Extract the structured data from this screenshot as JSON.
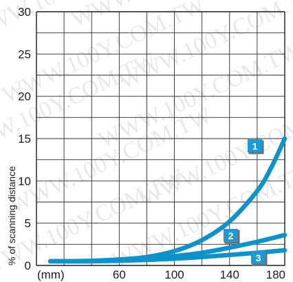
{
  "chart_data": {
    "type": "line",
    "ylabel": "% of scanning distance",
    "xlabel": "",
    "x_unit_label": "(mm)",
    "watermark": "WWW.100Y.COM.TW",
    "xlim": [
      0,
      180
    ],
    "ylim": [
      0,
      30
    ],
    "x_ticks": [
      60,
      100,
      140,
      180
    ],
    "y_ticks": [
      0,
      5,
      10,
      15,
      20,
      25,
      30
    ],
    "grid": true,
    "line_color": "#0d92c9",
    "badge_color": "#1a9ad6",
    "series": [
      {
        "label": "1",
        "x": [
          10,
          20,
          40,
          60,
          80,
          100,
          120,
          140,
          160,
          170,
          180
        ],
        "y": [
          0.5,
          0.5,
          0.55,
          0.7,
          1.0,
          1.7,
          3.0,
          5.2,
          8.8,
          11.5,
          15.0
        ]
      },
      {
        "label": "2",
        "x": [
          10,
          20,
          40,
          60,
          80,
          100,
          120,
          140,
          160,
          180
        ],
        "y": [
          0.5,
          0.5,
          0.5,
          0.6,
          0.8,
          1.1,
          1.5,
          2.1,
          2.8,
          3.6
        ]
      },
      {
        "label": "3",
        "x": [
          10,
          20,
          40,
          60,
          80,
          100,
          120,
          140,
          160,
          180
        ],
        "y": [
          0.5,
          0.5,
          0.5,
          0.55,
          0.65,
          0.8,
          1.0,
          1.25,
          1.5,
          1.8
        ]
      }
    ]
  }
}
